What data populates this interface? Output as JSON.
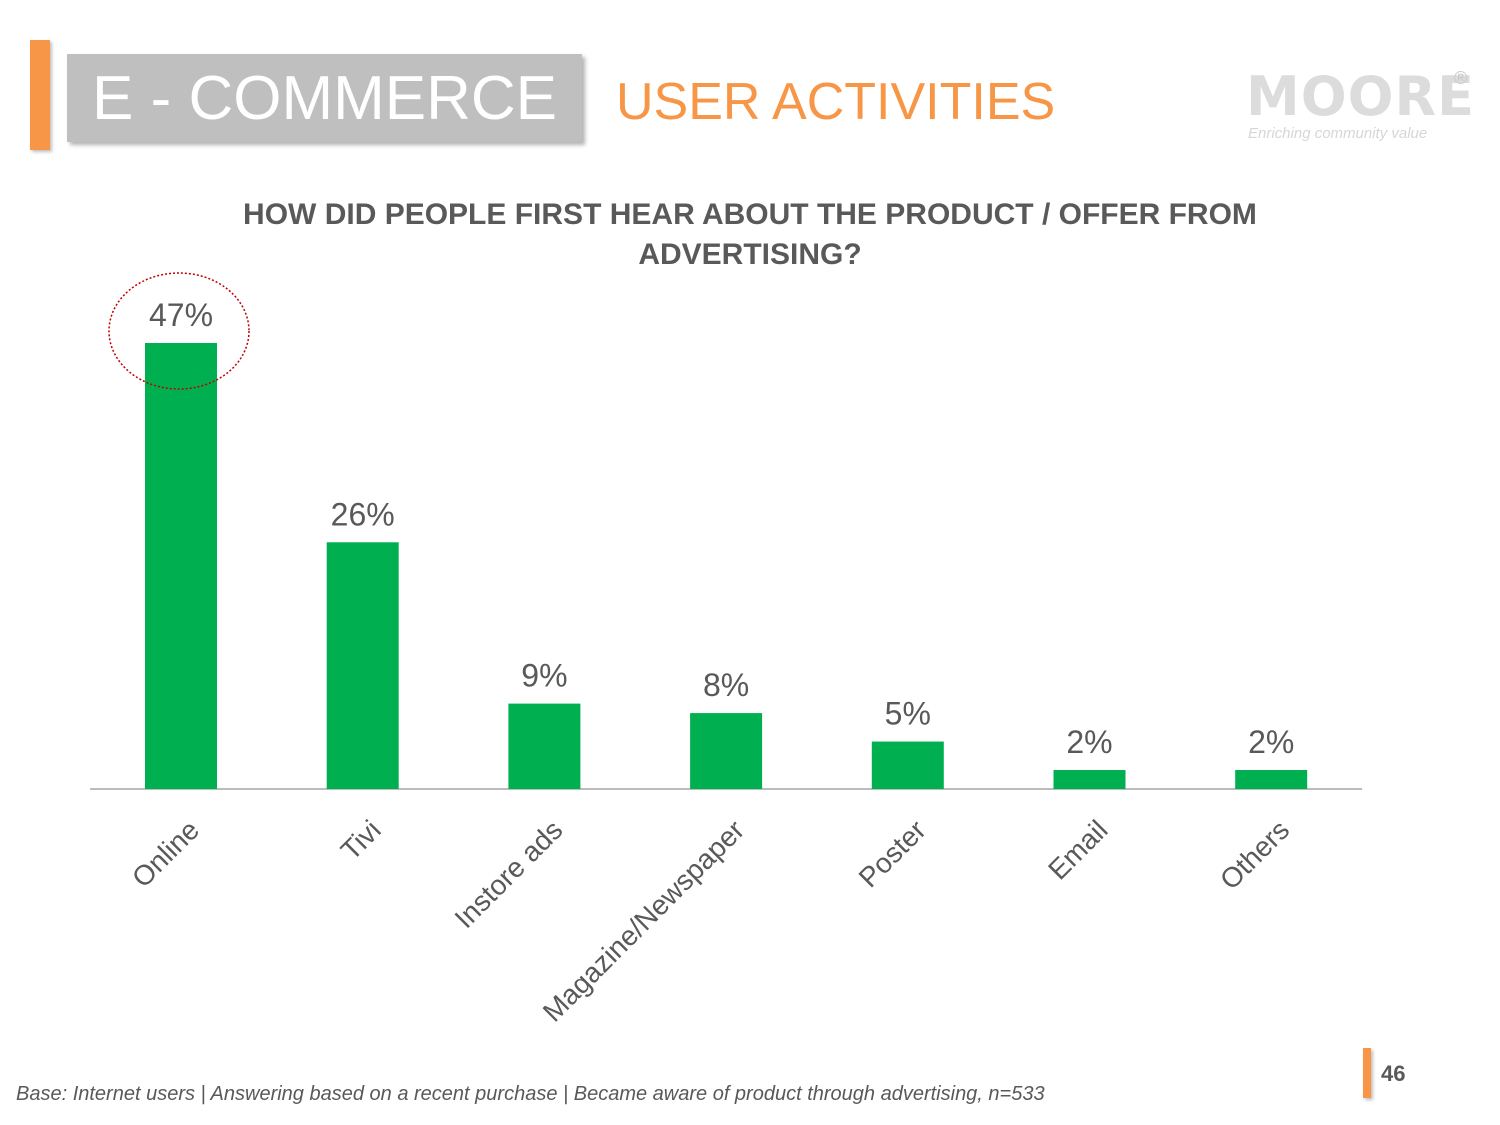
{
  "header": {
    "title": "E - COMMERCE",
    "subtitle": "USER ACTIVITIES",
    "logo": {
      "word": "MOORE",
      "tagline": "Enriching community value",
      "registered": "®"
    }
  },
  "colors": {
    "accent": "#f79646",
    "bar": "#00b050",
    "text": "#595959",
    "highlight_circle": "#c00000"
  },
  "chart_data": {
    "type": "bar",
    "title": "HOW DID PEOPLE FIRST HEAR ABOUT THE PRODUCT / OFFER FROM ADVERTISING?",
    "categories": [
      "Online",
      "Tivi",
      "Instore ads",
      "Magazine/Newspaper",
      "Poster",
      "Email",
      "Others"
    ],
    "values": [
      47,
      26,
      9,
      8,
      5,
      2,
      2
    ],
    "data_labels": [
      "47%",
      "26%",
      "9%",
      "8%",
      "5%",
      "2%",
      "2%"
    ],
    "ylim": [
      0,
      47
    ],
    "grid": false,
    "highlighted_category": "Online"
  },
  "footer": {
    "note": "Base: Internet users | Answering based on a recent purchase | Became aware of product through advertising, n=533",
    "page_number": "46"
  }
}
